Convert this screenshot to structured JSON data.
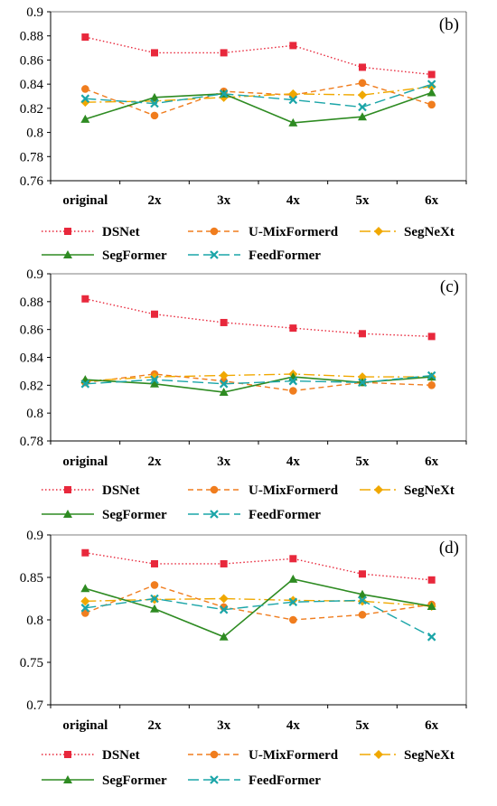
{
  "chart_data": [
    {
      "type": "line",
      "panel_label": "(b)",
      "categories": [
        "original",
        "2x",
        "3x",
        "4x",
        "5x",
        "6x"
      ],
      "ylim": [
        0.76,
        0.9
      ],
      "yticks": [
        0.76,
        0.78,
        0.8,
        0.82,
        0.84,
        0.86,
        0.88,
        0.9
      ],
      "ytick_labels": [
        "0.76",
        "0.78",
        "0.8",
        "0.82",
        "0.84",
        "0.86",
        "0.88",
        "0.9"
      ],
      "grid": false,
      "legend_position": "bottom",
      "series": [
        {
          "name": "DSNet",
          "values": [
            0.879,
            0.866,
            0.866,
            0.872,
            0.854,
            0.848
          ]
        },
        {
          "name": "U-MixFormerd",
          "values": [
            0.836,
            0.814,
            0.834,
            0.831,
            0.841,
            0.823
          ]
        },
        {
          "name": "SegNeXt",
          "values": [
            0.825,
            0.826,
            0.829,
            0.832,
            0.831,
            0.838
          ]
        },
        {
          "name": "SegFormer",
          "values": [
            0.811,
            0.829,
            0.832,
            0.808,
            0.813,
            0.833
          ]
        },
        {
          "name": "FeedFormer",
          "values": [
            0.828,
            0.824,
            0.832,
            0.827,
            0.821,
            0.84
          ]
        }
      ]
    },
    {
      "type": "line",
      "panel_label": "(c)",
      "categories": [
        "original",
        "2x",
        "3x",
        "4x",
        "5x",
        "6x"
      ],
      "ylim": [
        0.78,
        0.9
      ],
      "yticks": [
        0.78,
        0.8,
        0.82,
        0.84,
        0.86,
        0.88,
        0.9
      ],
      "ytick_labels": [
        "0.78",
        "0.8",
        "0.82",
        "0.84",
        "0.86",
        "0.88",
        "0.9"
      ],
      "grid": false,
      "legend_position": "bottom",
      "series": [
        {
          "name": "DSNet",
          "values": [
            0.882,
            0.871,
            0.865,
            0.861,
            0.857,
            0.855
          ]
        },
        {
          "name": "U-MixFormerd",
          "values": [
            0.822,
            0.828,
            0.823,
            0.816,
            0.822,
            0.82
          ]
        },
        {
          "name": "SegNeXt",
          "values": [
            0.823,
            0.826,
            0.827,
            0.828,
            0.826,
            0.826
          ]
        },
        {
          "name": "SegFormer",
          "values": [
            0.824,
            0.821,
            0.815,
            0.826,
            0.822,
            0.826
          ]
        },
        {
          "name": "FeedFormer",
          "values": [
            0.821,
            0.824,
            0.821,
            0.823,
            0.822,
            0.827
          ]
        }
      ]
    },
    {
      "type": "line",
      "panel_label": "(d)",
      "categories": [
        "original",
        "2x",
        "3x",
        "4x",
        "5x",
        "6x"
      ],
      "ylim": [
        0.7,
        0.9
      ],
      "yticks": [
        0.7,
        0.75,
        0.8,
        0.85,
        0.9
      ],
      "ytick_labels": [
        "0.7",
        "0.75",
        "0.8",
        "0.85",
        "0.9"
      ],
      "grid": false,
      "legend_position": "bottom",
      "series": [
        {
          "name": "DSNet",
          "values": [
            0.879,
            0.866,
            0.866,
            0.872,
            0.854,
            0.847
          ]
        },
        {
          "name": "U-MixFormerd",
          "values": [
            0.808,
            0.841,
            0.815,
            0.8,
            0.806,
            0.818
          ]
        },
        {
          "name": "SegNeXt",
          "values": [
            0.822,
            0.824,
            0.825,
            0.823,
            0.822,
            0.816
          ]
        },
        {
          "name": "SegFormer",
          "values": [
            0.837,
            0.813,
            0.78,
            0.848,
            0.83,
            0.816
          ]
        },
        {
          "name": "FeedFormer",
          "values": [
            0.814,
            0.825,
            0.812,
            0.821,
            0.823,
            0.78
          ]
        }
      ]
    }
  ],
  "series_styles": [
    {
      "color": "#e8283c",
      "marker": "square",
      "dash": "1.5,2.5"
    },
    {
      "color": "#f07d1e",
      "marker": "circle",
      "dash": "6,4"
    },
    {
      "color": "#f0a800",
      "marker": "diamond",
      "dash": "12,4,2,4"
    },
    {
      "color": "#2e8b22",
      "marker": "triangle",
      "dash": ""
    },
    {
      "color": "#1aa5a8",
      "marker": "x",
      "dash": "12,5"
    }
  ]
}
